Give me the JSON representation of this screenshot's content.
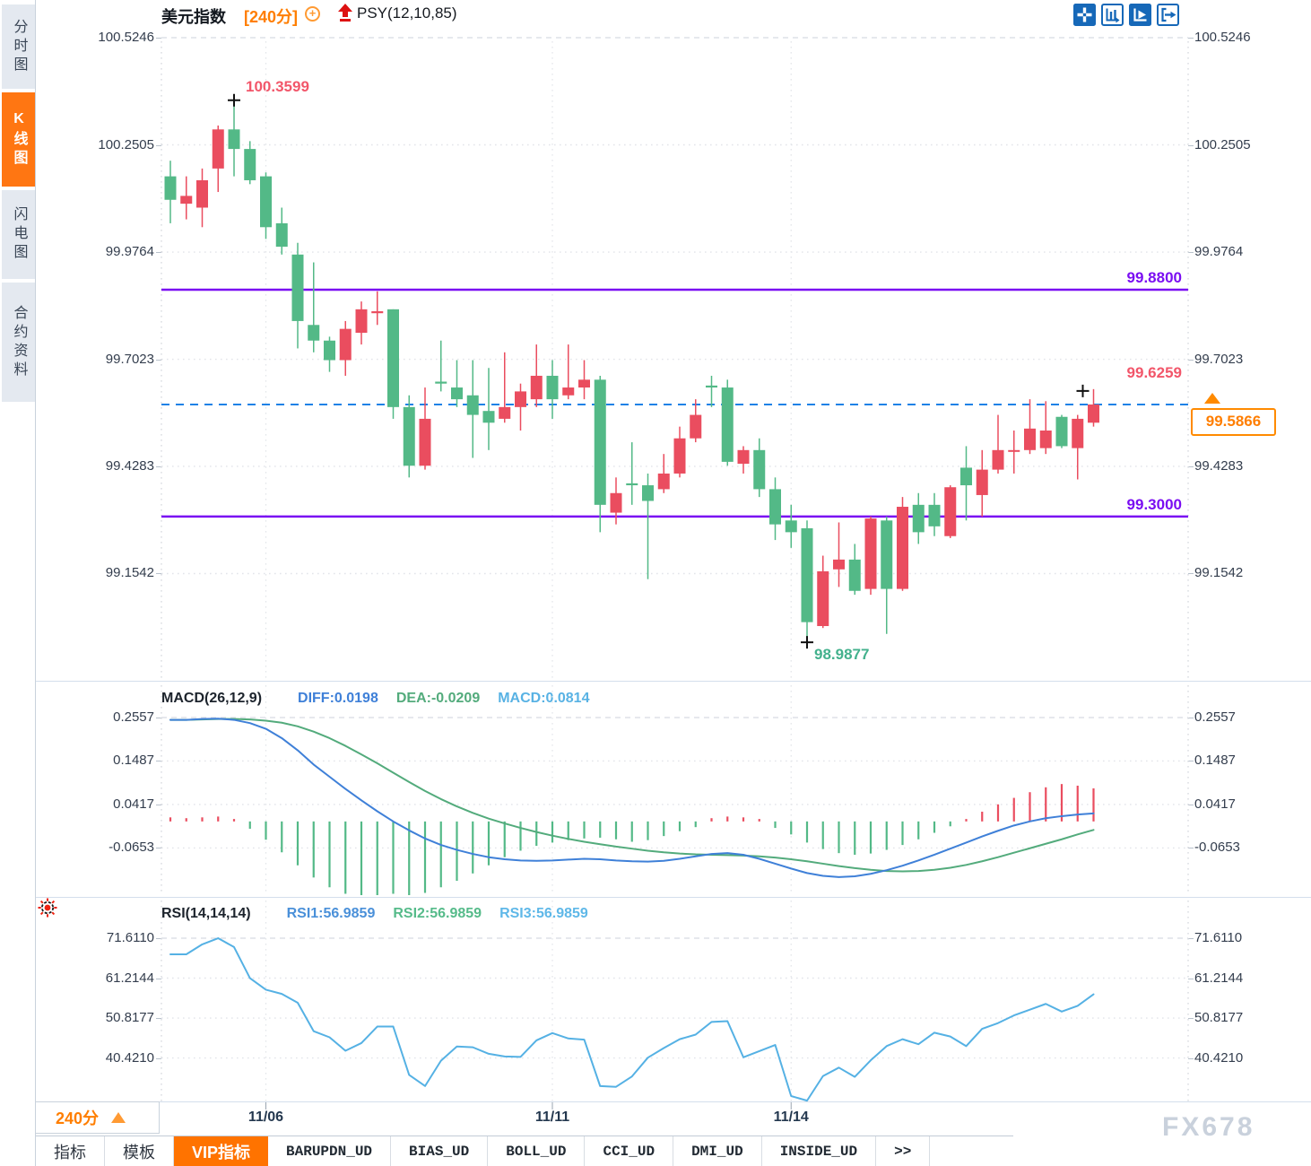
{
  "sidebar": {
    "items": [
      {
        "name": "sidebar-item-time-chart",
        "label": "分时图",
        "active": false
      },
      {
        "name": "sidebar-item-candle-chart",
        "label": "K线图",
        "active": true
      },
      {
        "name": "sidebar-item-flash-chart",
        "label": "闪电图",
        "active": false
      },
      {
        "name": "sidebar-item-contract-info",
        "label": "合约资料",
        "active": false
      }
    ]
  },
  "header": {
    "symbol": "美元指数",
    "period": "[240分]",
    "add_indicator": "+",
    "overlay_indicator": "PSY(12,10,85)"
  },
  "price_pane": {
    "y_ticks": [
      {
        "label": "100.5246",
        "v": 100.5246
      },
      {
        "label": "100.2505",
        "v": 100.2505
      },
      {
        "label": "99.9764",
        "v": 99.9764
      },
      {
        "label": "99.7023",
        "v": 99.7023
      },
      {
        "label": "99.4283",
        "v": 99.4283
      },
      {
        "label": "99.1542",
        "v": 99.1542
      }
    ],
    "hline_upper": {
      "value": 99.88,
      "label": "99.8800"
    },
    "hline_lower": {
      "value": 99.3,
      "label": "99.3000"
    },
    "current_price": {
      "value": 99.5866,
      "label": "99.5866"
    },
    "annotations": {
      "high": {
        "label": "100.3599",
        "value": 100.3599,
        "candle_index": 4
      },
      "low": {
        "label": "98.9877",
        "value": 98.9877,
        "candle_index": 40
      },
      "last": {
        "label": "99.6259",
        "value": 99.6259,
        "candle_index": 58
      }
    }
  },
  "macd_pane": {
    "title": "MACD(26,12,9)",
    "legend": [
      {
        "label": "DIFF:0.0198",
        "color": "#3f80d8"
      },
      {
        "label": "DEA:-0.0209",
        "color": "#53ab7c"
      },
      {
        "label": "MACD:0.0814",
        "color": "#58b2e4"
      }
    ],
    "y_ticks": [
      {
        "label": "0.2557",
        "v": 0.2557
      },
      {
        "label": "0.1487",
        "v": 0.1487
      },
      {
        "label": "0.0417",
        "v": 0.0417
      },
      {
        "label": "-0.0653",
        "v": -0.0653
      }
    ]
  },
  "rsi_pane": {
    "title": "RSI(14,14,14)",
    "legend": [
      {
        "label": "RSI1:56.9859",
        "color": "#4a90d9"
      },
      {
        "label": "RSI2:56.9859",
        "color": "#56bb8a"
      },
      {
        "label": "RSI3:56.9859",
        "color": "#5fb8e8"
      }
    ],
    "y_ticks": [
      {
        "label": "71.6110",
        "v": 71.611
      },
      {
        "label": "61.2144",
        "v": 61.2144
      },
      {
        "label": "50.8177",
        "v": 50.8177
      },
      {
        "label": "40.4210",
        "v": 40.421
      }
    ]
  },
  "x_axis": {
    "period_button": "240分",
    "dates": [
      {
        "label": "11/06",
        "index": 6
      },
      {
        "label": "11/11",
        "index": 24
      },
      {
        "label": "11/14",
        "index": 39
      }
    ]
  },
  "bottom_tabs": {
    "items": [
      {
        "name": "tab-indicator",
        "label": "指标",
        "active": false,
        "mono": false
      },
      {
        "name": "tab-template",
        "label": "模板",
        "active": false,
        "mono": false
      },
      {
        "name": "tab-vip-indicator",
        "label": "VIP指标",
        "active": true,
        "mono": false
      },
      {
        "name": "tab-barupdn-ud",
        "label": "BARUPDN_UD",
        "active": false,
        "mono": true
      },
      {
        "name": "tab-bias-ud",
        "label": "BIAS_UD",
        "active": false,
        "mono": true
      },
      {
        "name": "tab-boll-ud",
        "label": "BOLL_UD",
        "active": false,
        "mono": true
      },
      {
        "name": "tab-cci-ud",
        "label": "CCI_UD",
        "active": false,
        "mono": true
      },
      {
        "name": "tab-dmi-ud",
        "label": "DMI_UD",
        "active": false,
        "mono": true
      },
      {
        "name": "tab-inside-ud",
        "label": "INSIDE_UD",
        "active": false,
        "mono": true
      },
      {
        "name": "tab-more",
        "label": ">>",
        "active": false,
        "mono": true
      }
    ]
  },
  "watermark": "FX678",
  "colors": {
    "up": "#ea4d5f",
    "down": "#53b987",
    "accent_orange": "#ff7e00",
    "active_orange": "#ff7300",
    "purple_line": "#7a0df2",
    "dashed_blue": "#1e82e6",
    "diff_blue": "#3f80d8",
    "dea_green": "#53ab7c",
    "macd_cyan": "#58b2e4",
    "rsi_line": "#55b1e4",
    "label_red": "#f2566a",
    "label_green": "#43b18d",
    "label_purple": "#7a0df2",
    "axis_text": "#333d4d",
    "icon_blue": "#1668b8",
    "grid": "#dddfe4",
    "marker": "#111111"
  },
  "chart_data": [
    {
      "type": "candlestick",
      "title": "美元指数 240分 K线",
      "ylim": [
        98.93,
        100.5246
      ],
      "grid": true,
      "ohlc": [
        [
          100.17,
          100.21,
          100.05,
          100.11
        ],
        [
          100.1,
          100.17,
          100.06,
          100.12
        ],
        [
          100.09,
          100.19,
          100.04,
          100.16
        ],
        [
          100.19,
          100.3,
          100.13,
          100.29
        ],
        [
          100.29,
          100.3599,
          100.17,
          100.24
        ],
        [
          100.24,
          100.26,
          100.15,
          100.16
        ],
        [
          100.17,
          100.18,
          100.01,
          100.04
        ],
        [
          100.05,
          100.09,
          99.97,
          99.99
        ],
        [
          99.97,
          100.0,
          99.73,
          99.8
        ],
        [
          99.79,
          99.95,
          99.72,
          99.75
        ],
        [
          99.75,
          99.76,
          99.67,
          99.7
        ],
        [
          99.7,
          99.8,
          99.66,
          99.78
        ],
        [
          99.77,
          99.85,
          99.74,
          99.83
        ],
        [
          99.82,
          99.876,
          99.79,
          99.825
        ],
        [
          99.83,
          99.83,
          99.55,
          99.58
        ],
        [
          99.58,
          99.61,
          99.4,
          99.43
        ],
        [
          99.43,
          99.63,
          99.42,
          99.55
        ],
        [
          99.645,
          99.75,
          99.62,
          99.64
        ],
        [
          99.63,
          99.7,
          99.58,
          99.6
        ],
        [
          99.61,
          99.7,
          99.45,
          99.56
        ],
        [
          99.57,
          99.68,
          99.47,
          99.54
        ],
        [
          99.55,
          99.72,
          99.54,
          99.58
        ],
        [
          99.58,
          99.64,
          99.52,
          99.62
        ],
        [
          99.6,
          99.74,
          99.58,
          99.66
        ],
        [
          99.66,
          99.7,
          99.55,
          99.6
        ],
        [
          99.61,
          99.74,
          99.6,
          99.63
        ],
        [
          99.63,
          99.7,
          99.6,
          99.65
        ],
        [
          99.65,
          99.66,
          99.26,
          99.33
        ],
        [
          99.31,
          99.4,
          99.28,
          99.36
        ],
        [
          99.385,
          99.49,
          99.33,
          99.38
        ],
        [
          99.38,
          99.41,
          99.14,
          99.34
        ],
        [
          99.37,
          99.46,
          99.36,
          99.41
        ],
        [
          99.41,
          99.53,
          99.4,
          99.5
        ],
        [
          99.5,
          99.6,
          99.49,
          99.56
        ],
        [
          99.635,
          99.66,
          99.58,
          99.63
        ],
        [
          99.63,
          99.65,
          99.43,
          99.44
        ],
        [
          99.435,
          99.48,
          99.41,
          99.47
        ],
        [
          99.47,
          99.5,
          99.35,
          99.37
        ],
        [
          99.37,
          99.4,
          99.24,
          99.28
        ],
        [
          99.29,
          99.33,
          99.22,
          99.26
        ],
        [
          99.27,
          99.29,
          98.9877,
          99.03
        ],
        [
          99.02,
          99.2,
          99.015,
          99.16
        ],
        [
          99.165,
          99.285,
          99.12,
          99.19
        ],
        [
          99.19,
          99.23,
          99.1,
          99.11
        ],
        [
          99.115,
          99.3,
          99.1,
          99.295
        ],
        [
          99.29,
          99.3,
          99.0,
          99.115
        ],
        [
          99.115,
          99.35,
          99.11,
          99.325
        ],
        [
          99.33,
          99.36,
          99.23,
          99.26
        ],
        [
          99.33,
          99.36,
          99.25,
          99.275
        ],
        [
          99.25,
          99.38,
          99.245,
          99.375
        ],
        [
          99.425,
          99.48,
          99.29,
          99.38
        ],
        [
          99.355,
          99.47,
          99.3,
          99.42
        ],
        [
          99.42,
          99.56,
          99.41,
          99.47
        ],
        [
          99.47,
          99.52,
          99.41,
          99.47
        ],
        [
          99.47,
          99.6,
          99.46,
          99.525
        ],
        [
          99.475,
          99.595,
          99.46,
          99.52
        ],
        [
          99.555,
          99.56,
          99.475,
          99.48
        ],
        [
          99.475,
          99.56,
          99.395,
          99.55
        ],
        [
          99.54,
          99.6259,
          99.53,
          99.5866
        ]
      ]
    },
    {
      "type": "bar",
      "title": "MACD histogram",
      "ylim": [
        -0.19,
        0.2557
      ],
      "values": [
        0.01,
        0.008,
        0.01,
        0.012,
        0.006,
        -0.018,
        -0.045,
        -0.076,
        -0.108,
        -0.138,
        -0.162,
        -0.178,
        -0.188,
        -0.185,
        -0.178,
        -0.186,
        -0.176,
        -0.162,
        -0.146,
        -0.128,
        -0.108,
        -0.088,
        -0.072,
        -0.06,
        -0.052,
        -0.046,
        -0.042,
        -0.04,
        -0.044,
        -0.05,
        -0.046,
        -0.036,
        -0.024,
        -0.014,
        0.008,
        0.012,
        0.01,
        0.006,
        -0.016,
        -0.032,
        -0.052,
        -0.068,
        -0.078,
        -0.082,
        -0.079,
        -0.07,
        -0.058,
        -0.044,
        -0.028,
        -0.012,
        0.006,
        0.024,
        0.042,
        0.058,
        0.072,
        0.084,
        0.092,
        0.088,
        0.0814
      ]
    },
    {
      "type": "line",
      "title": "MACD DIFF / DEA",
      "series": [
        {
          "name": "DIFF",
          "values": [
            0.25,
            0.25,
            0.252,
            0.253,
            0.25,
            0.242,
            0.228,
            0.205,
            0.175,
            0.14,
            0.11,
            0.08,
            0.052,
            0.025,
            0.0,
            -0.022,
            -0.042,
            -0.058,
            -0.07,
            -0.08,
            -0.088,
            -0.093,
            -0.096,
            -0.097,
            -0.096,
            -0.094,
            -0.092,
            -0.093,
            -0.096,
            -0.098,
            -0.099,
            -0.097,
            -0.092,
            -0.086,
            -0.08,
            -0.078,
            -0.082,
            -0.092,
            -0.104,
            -0.116,
            -0.127,
            -0.134,
            -0.137,
            -0.135,
            -0.129,
            -0.12,
            -0.109,
            -0.096,
            -0.082,
            -0.067,
            -0.052,
            -0.037,
            -0.023,
            -0.01,
            0.0,
            0.008,
            0.013,
            0.017,
            0.0198
          ]
        },
        {
          "name": "DEA",
          "values": [
            0.25,
            0.25,
            0.251,
            0.252,
            0.252,
            0.251,
            0.248,
            0.243,
            0.234,
            0.221,
            0.205,
            0.186,
            0.165,
            0.143,
            0.12,
            0.097,
            0.075,
            0.055,
            0.037,
            0.021,
            0.007,
            -0.005,
            -0.016,
            -0.026,
            -0.035,
            -0.043,
            -0.05,
            -0.056,
            -0.062,
            -0.067,
            -0.072,
            -0.076,
            -0.079,
            -0.081,
            -0.082,
            -0.083,
            -0.084,
            -0.086,
            -0.089,
            -0.093,
            -0.098,
            -0.104,
            -0.11,
            -0.115,
            -0.119,
            -0.122,
            -0.123,
            -0.122,
            -0.119,
            -0.114,
            -0.107,
            -0.098,
            -0.088,
            -0.077,
            -0.066,
            -0.055,
            -0.044,
            -0.032,
            -0.0209
          ]
        }
      ]
    },
    {
      "type": "line",
      "title": "RSI",
      "ylim": [
        27,
        74
      ],
      "series": [
        {
          "name": "RSI1/RSI2/RSI3",
          "values": [
            67.4,
            67.4,
            70.0,
            71.6,
            69.3,
            61.2,
            58.2,
            57.1,
            54.8,
            47.4,
            45.8,
            42.3,
            44.3,
            48.6,
            48.6,
            36.0,
            33.1,
            39.7,
            43.4,
            43.2,
            41.5,
            40.8,
            40.7,
            45.0,
            46.9,
            45.5,
            45.2,
            33.1,
            32.9,
            35.6,
            40.5,
            43.0,
            45.3,
            46.5,
            49.8,
            50.0,
            40.6,
            42.2,
            43.8,
            30.5,
            29.3,
            35.7,
            37.9,
            35.5,
            39.8,
            43.5,
            45.3,
            44.0,
            47.0,
            46.0,
            43.5,
            48.0,
            49.5,
            51.5,
            53.0,
            54.5,
            52.5,
            54.0,
            56.99
          ]
        }
      ]
    }
  ]
}
